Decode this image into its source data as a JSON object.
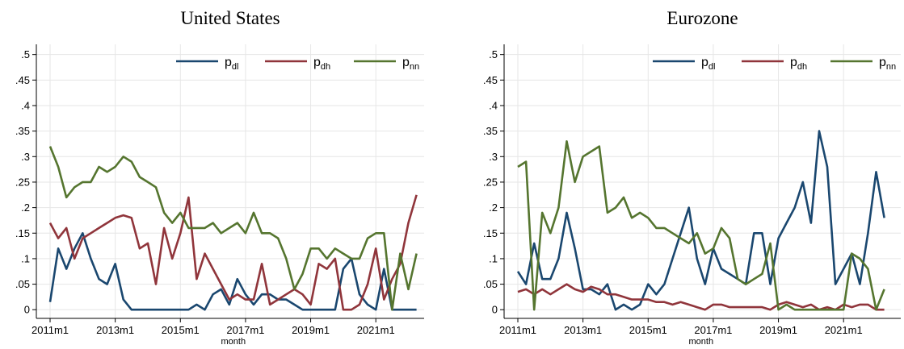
{
  "chart_data": [
    {
      "type": "line",
      "title": "United States",
      "x_label": "month",
      "x": [
        "2011m1",
        "2011m4",
        "2011m7",
        "2011m10",
        "2012m1",
        "2012m4",
        "2012m7",
        "2012m10",
        "2013m1",
        "2013m4",
        "2013m7",
        "2013m10",
        "2014m1",
        "2014m4",
        "2014m7",
        "2014m10",
        "2015m1",
        "2015m4",
        "2015m7",
        "2015m10",
        "2016m1",
        "2016m4",
        "2016m7",
        "2016m10",
        "2017m1",
        "2017m4",
        "2017m7",
        "2017m10",
        "2018m1",
        "2018m4",
        "2018m7",
        "2018m10",
        "2019m1",
        "2019m4",
        "2019m7",
        "2019m10",
        "2020m1",
        "2020m4",
        "2020m7",
        "2020m10",
        "2021m1",
        "2021m4",
        "2021m7",
        "2021m10",
        "2022m1",
        "2022m4"
      ],
      "xticks": [
        "2011m1",
        "2013m1",
        "2015m1",
        "2017m1",
        "2019m1",
        "2021m1"
      ],
      "ylim": [
        -0.017,
        0.52
      ],
      "yticks": [
        0,
        {
          "value": 0.05,
          "label": ".05"
        },
        {
          "value": 0.1,
          "label": ".1"
        },
        {
          "value": 0.15,
          "label": ".15"
        },
        {
          "value": 0.2,
          "label": ".2"
        },
        {
          "value": 0.25,
          "label": ".25"
        },
        {
          "value": 0.3,
          "label": ".3"
        },
        {
          "value": 0.35,
          "label": ".35"
        },
        {
          "value": 0.4,
          "label": ".4"
        },
        {
          "value": 0.45,
          "label": ".45"
        },
        {
          "value": 0.5,
          "label": ".5"
        }
      ],
      "grid": true,
      "legend": "top-right",
      "series": [
        {
          "name": "p",
          "name_sub": "dl",
          "color": "#1a476f",
          "values": [
            0.015,
            0.12,
            0.08,
            0.12,
            0.15,
            0.1,
            0.06,
            0.05,
            0.09,
            0.02,
            0,
            0,
            0,
            0,
            0,
            0,
            0,
            0,
            0.01,
            0,
            0.03,
            0.04,
            0.01,
            0.06,
            0.03,
            0.01,
            0.03,
            0.03,
            0.02,
            0.02,
            0.01,
            0,
            0,
            0,
            0,
            0,
            0.08,
            0.1,
            0.03,
            0.01,
            0,
            0.08,
            0,
            0,
            0,
            0
          ]
        },
        {
          "name": "p",
          "name_sub": "dh",
          "color": "#90353b",
          "values": [
            0.17,
            0.14,
            0.16,
            0.1,
            0.14,
            0.15,
            0.16,
            0.17,
            0.18,
            0.185,
            0.18,
            0.12,
            0.13,
            0.05,
            0.16,
            0.1,
            0.15,
            0.22,
            0.06,
            0.11,
            0.08,
            0.05,
            0.02,
            0.03,
            0.02,
            0.02,
            0.09,
            0.01,
            0.02,
            0.03,
            0.04,
            0.03,
            0.01,
            0.09,
            0.08,
            0.1,
            0,
            0,
            0.01,
            0.05,
            0.12,
            0.02,
            0.06,
            0.09,
            0.17,
            0.225
          ]
        },
        {
          "name": "p",
          "name_sub": "nn",
          "color": "#55752f",
          "values": [
            0.32,
            0.28,
            0.22,
            0.24,
            0.25,
            0.25,
            0.28,
            0.27,
            0.28,
            0.3,
            0.29,
            0.26,
            0.25,
            0.24,
            0.19,
            0.17,
            0.19,
            0.16,
            0.16,
            0.16,
            0.17,
            0.15,
            0.16,
            0.17,
            0.15,
            0.19,
            0.15,
            0.15,
            0.14,
            0.1,
            0.04,
            0.07,
            0.12,
            0.12,
            0.1,
            0.12,
            0.11,
            0.1,
            0.1,
            0.14,
            0.15,
            0.15,
            0,
            0.11,
            0.04,
            0.11
          ]
        }
      ]
    },
    {
      "type": "line",
      "title": "Eurozone",
      "x_label": "month",
      "x": [
        "2011m1",
        "2011m4",
        "2011m7",
        "2011m10",
        "2012m1",
        "2012m4",
        "2012m7",
        "2012m10",
        "2013m1",
        "2013m4",
        "2013m7",
        "2013m10",
        "2014m1",
        "2014m4",
        "2014m7",
        "2014m10",
        "2015m1",
        "2015m4",
        "2015m7",
        "2015m10",
        "2016m1",
        "2016m4",
        "2016m7",
        "2016m10",
        "2017m1",
        "2017m4",
        "2017m7",
        "2017m10",
        "2018m1",
        "2018m4",
        "2018m7",
        "2018m10",
        "2019m1",
        "2019m4",
        "2019m7",
        "2019m10",
        "2020m1",
        "2020m4",
        "2020m7",
        "2020m10",
        "2021m1",
        "2021m4",
        "2021m7",
        "2021m10",
        "2022m1",
        "2022m4"
      ],
      "xticks": [
        "2011m1",
        "2013m1",
        "2015m1",
        "2017m1",
        "2019m1",
        "2021m1"
      ],
      "ylim": [
        -0.017,
        0.52
      ],
      "yticks": [
        0,
        {
          "value": 0.05,
          "label": ".05"
        },
        {
          "value": 0.1,
          "label": ".1"
        },
        {
          "value": 0.15,
          "label": ".15"
        },
        {
          "value": 0.2,
          "label": ".2"
        },
        {
          "value": 0.25,
          "label": ".25"
        },
        {
          "value": 0.3,
          "label": ".3"
        },
        {
          "value": 0.35,
          "label": ".35"
        },
        {
          "value": 0.4,
          "label": ".4"
        },
        {
          "value": 0.45,
          "label": ".45"
        },
        {
          "value": 0.5,
          "label": ".5"
        }
      ],
      "grid": true,
      "legend": "top-right",
      "series": [
        {
          "name": "p",
          "name_sub": "dl",
          "color": "#1a476f",
          "values": [
            0.075,
            0.05,
            0.13,
            0.06,
            0.06,
            0.1,
            0.19,
            0.12,
            0.04,
            0.04,
            0.03,
            0.05,
            0,
            0.01,
            0,
            0.01,
            0.05,
            0.03,
            0.05,
            0.1,
            0.15,
            0.2,
            0.1,
            0.05,
            0.12,
            0.08,
            0.07,
            0.06,
            0.05,
            0.15,
            0.15,
            0.05,
            0.14,
            0.17,
            0.2,
            0.25,
            0.17,
            0.35,
            0.28,
            0.05,
            0.08,
            0.11,
            0.05,
            0.15,
            0.27,
            0.18
          ]
        },
        {
          "name": "p",
          "name_sub": "dh",
          "color": "#90353b",
          "values": [
            0.035,
            0.04,
            0.03,
            0.04,
            0.03,
            0.04,
            0.05,
            0.04,
            0.035,
            0.045,
            0.04,
            0.03,
            0.03,
            0.025,
            0.02,
            0.02,
            0.02,
            0.015,
            0.015,
            0.01,
            0.015,
            0.01,
            0.005,
            0,
            0.01,
            0.01,
            0.005,
            0.005,
            0.005,
            0.005,
            0.005,
            0,
            0.01,
            0.015,
            0.01,
            0.005,
            0.01,
            0,
            0.005,
            0,
            0.01,
            0.005,
            0.01,
            0.01,
            0,
            0
          ]
        },
        {
          "name": "p",
          "name_sub": "nn",
          "color": "#55752f",
          "values": [
            0.28,
            0.29,
            0,
            0.19,
            0.15,
            0.2,
            0.33,
            0.25,
            0.3,
            0.31,
            0.32,
            0.19,
            0.2,
            0.22,
            0.18,
            0.19,
            0.18,
            0.16,
            0.16,
            0.15,
            0.14,
            0.13,
            0.15,
            0.11,
            0.12,
            0.16,
            0.14,
            0.06,
            0.05,
            0.06,
            0.07,
            0.13,
            0,
            0.01,
            0,
            0,
            0,
            0,
            0,
            0,
            0,
            0.11,
            0.1,
            0.08,
            0,
            0.04
          ]
        }
      ]
    }
  ]
}
